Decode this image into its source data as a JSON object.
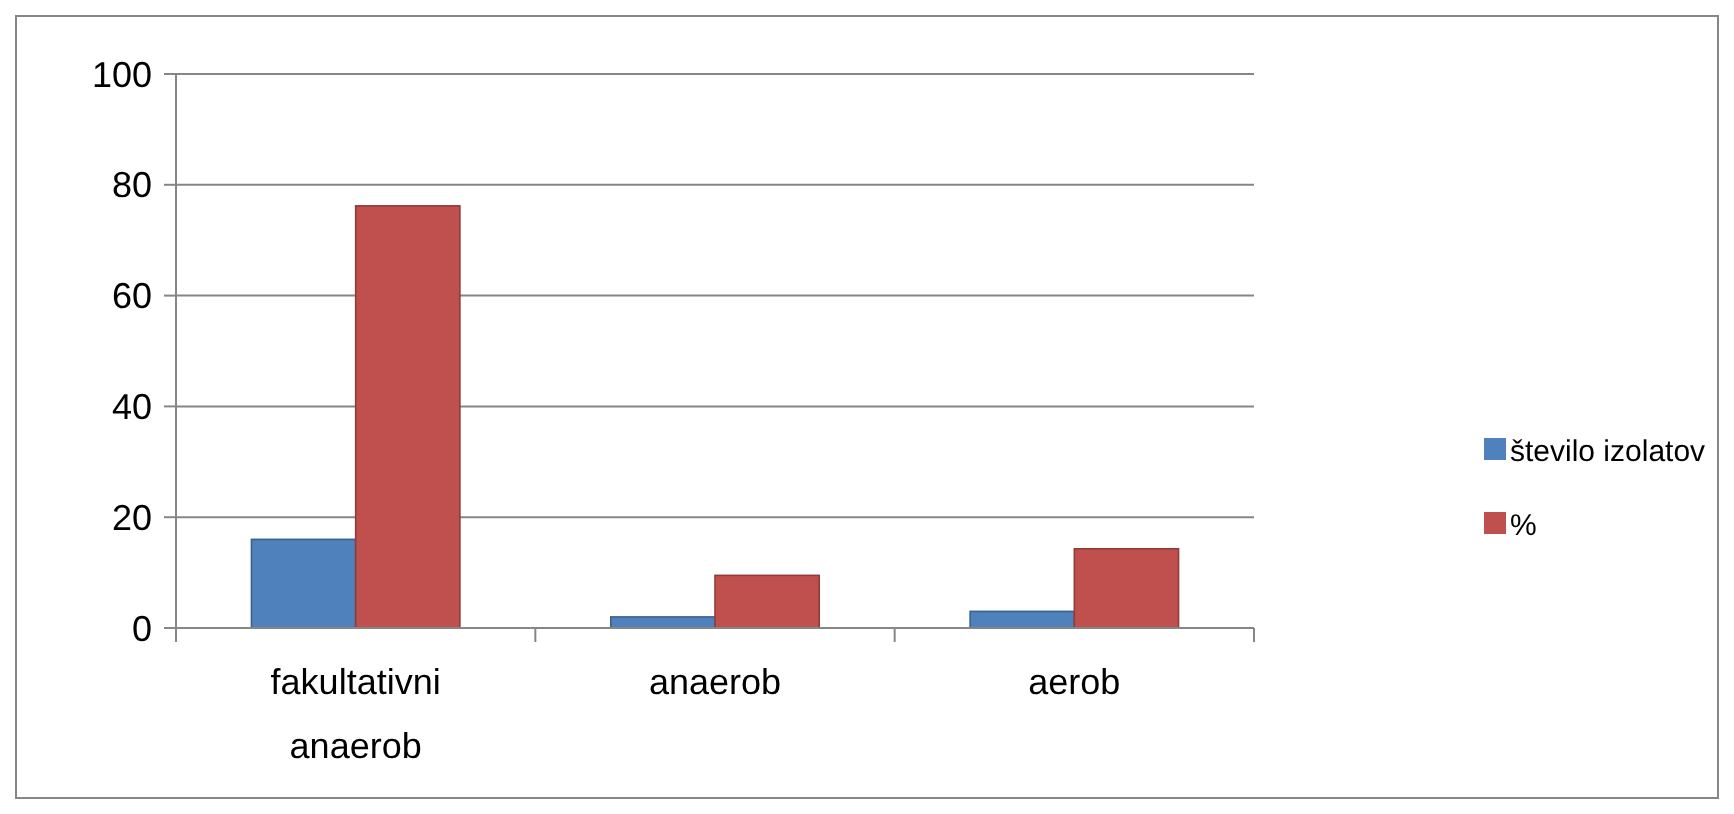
{
  "chart_data": {
    "type": "bar",
    "categories": [
      "fakultativni anaerob",
      "anaerob",
      "aerob"
    ],
    "series": [
      {
        "name": "število izolatov",
        "color": "#4f81bd",
        "values": [
          16,
          2,
          3
        ]
      },
      {
        "name": "%",
        "color": "#c0504d",
        "values": [
          76.2,
          9.5,
          14.3
        ]
      }
    ],
    "ylim": [
      0,
      100
    ],
    "yticks": [
      0,
      20,
      40,
      60,
      80,
      100
    ],
    "grid": "y",
    "legend": "right"
  }
}
